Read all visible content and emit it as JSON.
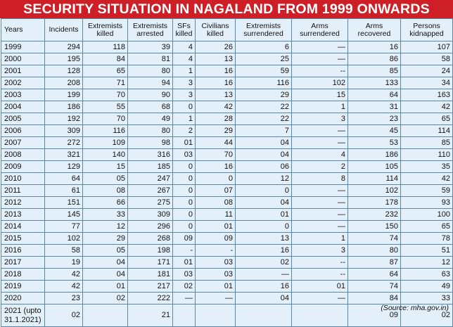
{
  "title": "SECURITY SITUATION IN NAGALAND FROM 1999 ONWARDS",
  "headers": [
    "Years",
    "Incidents",
    "Extremists killed",
    "Extremists arrested",
    "SFs killed",
    "Civilians killed",
    "Extremists surrendered",
    "Arms surrendered",
    "Arms recovered",
    "Persons kidnapped"
  ],
  "rows": [
    [
      "1999",
      "294",
      "118",
      "39",
      "4",
      "26",
      "6",
      "—",
      "16",
      "107"
    ],
    [
      "2000",
      "195",
      "84",
      "81",
      "4",
      "13",
      "25",
      "—",
      "86",
      "58"
    ],
    [
      "2001",
      "128",
      "65",
      "80",
      "1",
      "16",
      "59",
      "--",
      "85",
      "24"
    ],
    [
      "2002",
      "208",
      "71",
      "94",
      "3",
      "16",
      "116",
      "102",
      "133",
      "34"
    ],
    [
      "2003",
      "199",
      "70",
      "90",
      "3",
      "13",
      "29",
      "15",
      "64",
      "163"
    ],
    [
      "2004",
      "186",
      "55",
      "68",
      "0",
      "42",
      "22",
      "1",
      "31",
      "42"
    ],
    [
      "2005",
      "192",
      "70",
      "49",
      "1",
      "28",
      "22",
      "3",
      "23",
      "65"
    ],
    [
      "2006",
      "309",
      "116",
      "80",
      "2",
      "29",
      "7",
      "—",
      "45",
      "114"
    ],
    [
      "2007",
      "272",
      "109",
      "98",
      "01",
      "44",
      "04",
      "—",
      "53",
      "85"
    ],
    [
      "2008",
      "321",
      "140",
      "316",
      "03",
      "70",
      "04",
      "4",
      "186",
      "110"
    ],
    [
      "2009",
      "129",
      "15",
      "185",
      "0",
      "16",
      "06",
      "2",
      "105",
      "35"
    ],
    [
      "2010",
      "64",
      "05",
      "247",
      "0",
      "0",
      "12",
      "8",
      "114",
      "42"
    ],
    [
      "2011",
      "61",
      "08",
      "267",
      "0",
      "07",
      "0",
      "—",
      "102",
      "59"
    ],
    [
      "2012",
      "151",
      "66",
      "275",
      "0",
      "08",
      "04",
      "—",
      "178",
      "93"
    ],
    [
      "2013",
      "145",
      "33",
      "309",
      "0",
      "11",
      "01",
      "—",
      "232",
      "100"
    ],
    [
      "2014",
      "77",
      "12",
      "296",
      "0",
      "01",
      "0",
      "—",
      "150",
      "65"
    ],
    [
      "2015",
      "102",
      "29",
      "268",
      "09",
      "09",
      "13",
      "1",
      "74",
      "78"
    ],
    [
      "2016",
      "58",
      "05",
      "198",
      "-",
      "-",
      "16",
      "3",
      "80",
      "51"
    ],
    [
      "2017",
      "19",
      "04",
      "171",
      "01",
      "03",
      "02",
      "--",
      "87",
      "12"
    ],
    [
      "2018",
      "42",
      "04",
      "181",
      "03",
      "03",
      "—",
      "--",
      "64",
      "63"
    ],
    [
      "2019",
      "42",
      "01",
      "217",
      "02",
      "01",
      "16",
      "01",
      "74",
      "49"
    ],
    [
      "2020",
      "23",
      "02",
      "222",
      "—",
      "—",
      "04",
      "—",
      "84",
      "33"
    ],
    [
      "2021 (upto 31.1.2021)",
      "02",
      "",
      "21",
      "",
      "",
      "",
      "",
      "09",
      "02"
    ]
  ],
  "source": "(Source: mha.gov.in)"
}
